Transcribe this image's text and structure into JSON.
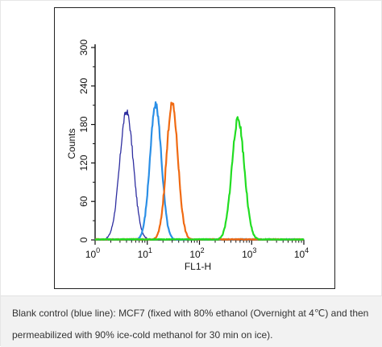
{
  "chart_data": {
    "type": "line",
    "xlabel": "FL1-H",
    "ylabel": "Counts",
    "xscale": "log",
    "xlim": [
      1,
      10000
    ],
    "ylim": [
      0,
      300
    ],
    "xticks": [
      {
        "base": "10",
        "exp": "0"
      },
      {
        "base": "10",
        "exp": "1"
      },
      {
        "base": "10",
        "exp": "2"
      },
      {
        "base": "10",
        "exp": "3"
      },
      {
        "base": "10",
        "exp": "4"
      }
    ],
    "yticks": [
      "0",
      "60",
      "120",
      "180",
      "240",
      "300"
    ],
    "series": [
      {
        "color": "#2e2ea0",
        "peak_x": 4.0,
        "peak_y": 200,
        "sigma_log": 0.13
      },
      {
        "color": "#2b8fe6",
        "peak_x": 14.5,
        "peak_y": 210,
        "sigma_log": 0.11
      },
      {
        "color": "#f06a12",
        "peak_x": 30.0,
        "peak_y": 212,
        "sigma_log": 0.11
      },
      {
        "color": "#22dd22",
        "peak_x": 550,
        "peak_y": 188,
        "sigma_log": 0.12
      }
    ]
  },
  "caption": {
    "text": "Blank control (blue line): MCF7 (fixed with 80% ethanol (Overnight at 4℃) and then permeabilized with 90% ice-cold methanol for 30 min on ice)."
  }
}
